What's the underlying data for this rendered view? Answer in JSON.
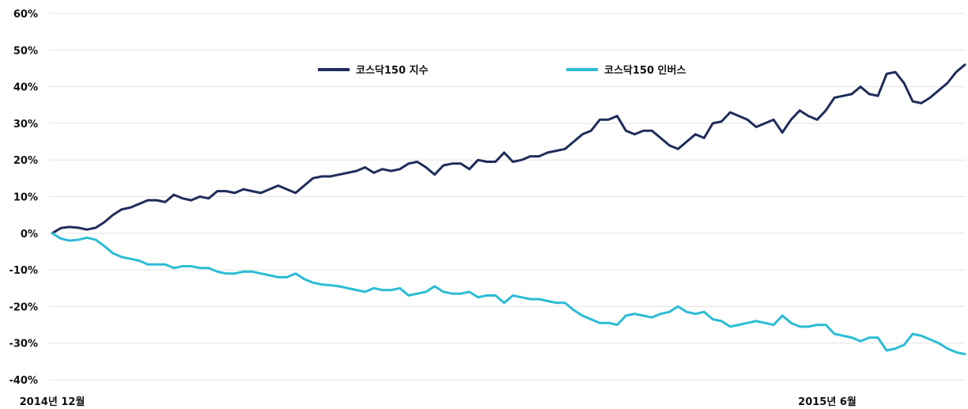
{
  "chart_data": {
    "type": "line",
    "ylim": [
      -40,
      60
    ],
    "y_ticks": [
      60,
      50,
      40,
      30,
      20,
      10,
      0,
      -10,
      -20,
      -30,
      -40
    ],
    "y_tick_labels": [
      "60%",
      "50%",
      "40%",
      "30%",
      "20%",
      "10%",
      "0%",
      "-10%",
      "-20%",
      "-30%",
      "-40%"
    ],
    "x_labels": [
      "2014년 12월",
      "2015년 6월"
    ],
    "grid": true,
    "legend_position": "top-center",
    "series": [
      {
        "name": "코스닥150 지수",
        "color": "#1f2d5c",
        "values": [
          0,
          1.4,
          1.7,
          1.5,
          1,
          1.5,
          3,
          5,
          6.5,
          7,
          8,
          9,
          9,
          8.5,
          10.5,
          9.5,
          9,
          10,
          9.5,
          11.5,
          11.5,
          11,
          12,
          11.5,
          11,
          12,
          13,
          12,
          11,
          13,
          15,
          15.5,
          15.5,
          16,
          16.5,
          17,
          18,
          16.5,
          17.5,
          17,
          17.5,
          19,
          19.5,
          18,
          16,
          18.5,
          19,
          19,
          17.5,
          20,
          19.5,
          19.5,
          22,
          19.5,
          20,
          21,
          21,
          22,
          22.5,
          23,
          25,
          27,
          28,
          31,
          31,
          32,
          28,
          27,
          28,
          28,
          26,
          24,
          23,
          25,
          27,
          26,
          30,
          30.5,
          33,
          32,
          31,
          29,
          30,
          31,
          27.5,
          31,
          33.5,
          32,
          31,
          33.5,
          37,
          37.5,
          38,
          40,
          38,
          37.5,
          43.5,
          44,
          41,
          36,
          35.5,
          37,
          39,
          41,
          44,
          46
        ]
      },
      {
        "name": "코스닥150 인버스",
        "color": "#2bbcd4",
        "values": [
          0,
          -1.5,
          -2,
          -1.8,
          -1.2,
          -1.8,
          -3.5,
          -5.5,
          -6.5,
          -7,
          -7.5,
          -8.5,
          -8.5,
          -8.5,
          -9.5,
          -9,
          -9,
          -9.5,
          -9.5,
          -10.5,
          -11,
          -11,
          -10.5,
          -10.5,
          -11,
          -11.5,
          -12,
          -12,
          -11,
          -12.5,
          -13.5,
          -14,
          -14.2,
          -14.5,
          -15,
          -15.5,
          -16,
          -15,
          -15.5,
          -15.5,
          -15,
          -17,
          -16.5,
          -16,
          -14.5,
          -16,
          -16.5,
          -16.5,
          -16,
          -17.5,
          -17,
          -17,
          -19,
          -17,
          -17.5,
          -18,
          -18,
          -18.5,
          -19,
          -19,
          -21,
          -22.5,
          -23.5,
          -24.5,
          -24.5,
          -25,
          -22.5,
          -22,
          -22.5,
          -23,
          -22,
          -21.5,
          -20,
          -21.5,
          -22,
          -21.5,
          -23.5,
          -24,
          -25.5,
          -25,
          -24.5,
          -24,
          -24.5,
          -25,
          -22.5,
          -24.5,
          -25.5,
          -25.5,
          -25,
          -25,
          -27.5,
          -28,
          -28.5,
          -29.5,
          -28.5,
          -28.5,
          -32,
          -31.5,
          -30.5,
          -27.5,
          -28,
          -29,
          -30,
          -31.5,
          -32.5,
          -33
        ]
      }
    ]
  }
}
